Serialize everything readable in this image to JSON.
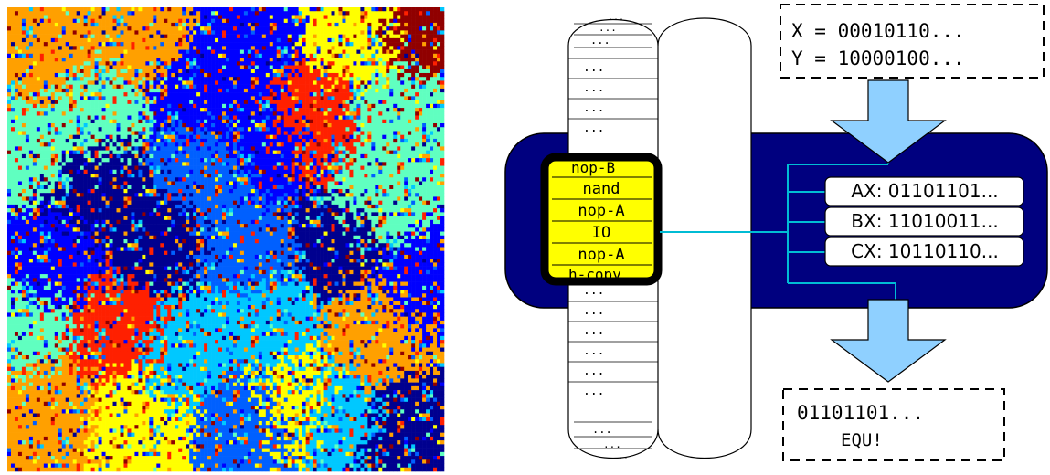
{
  "input_box": {
    "line_x": "X = 00010110...",
    "line_y": "Y = 10000100..."
  },
  "output_box": {
    "value": "01101101...",
    "task": "EQU!"
  },
  "registers": [
    {
      "label": "AX: 01101101..."
    },
    {
      "label": "BX: 11010011..."
    },
    {
      "label": "CX: 10110110..."
    }
  ],
  "genome": {
    "instruction_placeholder": "...",
    "partial_top": "nop-B",
    "partial_bottom": "h-copy",
    "active_instructions": [
      "nand",
      "nop-A",
      "IO",
      "nop-A"
    ]
  },
  "colors": {
    "cpu_body": "#00007f",
    "cpu_outline": "#000000",
    "wire": "#00bcd4",
    "arrow": "#8fd0ff",
    "highlight": "#ffff00",
    "register_fill": "#ffffff",
    "heatmap_palette": [
      "#00008f",
      "#0000ff",
      "#0060ff",
      "#00c8ff",
      "#60ffc0",
      "#ffff00",
      "#ffa000",
      "#ff2000",
      "#900000"
    ]
  }
}
